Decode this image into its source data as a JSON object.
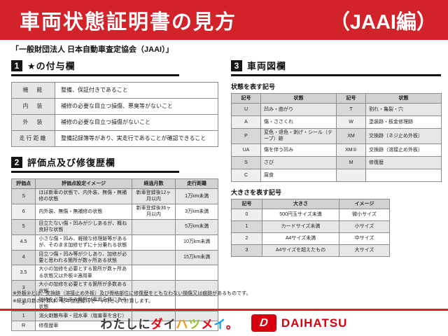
{
  "colors": {
    "header_bg": "#d2232a",
    "section_black": "#151515",
    "brand_red": "#d7000f"
  },
  "header": {
    "title": "車両状態証明書の見方",
    "edition": "（JAAI編）"
  },
  "subtitle": "「一般財団法人 日本自動車査定協会（JAAI）」",
  "section1": {
    "number": "1",
    "title": "★の付与欄",
    "rows": [
      {
        "label": "機　能",
        "desc": "整備、保証付きであること"
      },
      {
        "label": "内　装",
        "desc": "補修の必要な目立つ損傷、悪臭等がないこと"
      },
      {
        "label": "外　装",
        "desc": "補修の必要な目立つ損傷がないこと"
      },
      {
        "label": "走行距離",
        "desc": "整備記録簿等があり、実走行であることが確認できること"
      }
    ]
  },
  "section2": {
    "number": "2",
    "title": "評価点及び修復歴欄",
    "headers": [
      "評価点",
      "評価点設定イメージ",
      "経過月数",
      "走行距離"
    ],
    "rows": [
      [
        "S",
        "ほぼ新車の状態で、内外装、無傷・無補修の状態",
        "新車登録後12ヶ月以内",
        "1万km未満"
      ],
      [
        "6",
        "内外装、無傷・無補修の状態",
        "新車登録後36ヶ月以内",
        "3万km未満"
      ],
      [
        "5",
        "目立たない傷・凹みが少しあるが、概ね良好な状態",
        "",
        "5万km未満"
      ],
      [
        "4.5",
        "小さな傷・凹み、軽微な修理跡等があるが、そのまま加修せずに十分乗れる状態",
        "",
        "10万km未満"
      ],
      [
        "4",
        "目立つ傷・凹み等が少しあり、加修が必要と思われる箇所が数ヶ所ある状態",
        "",
        "15万km未満"
      ],
      [
        "3.5",
        "大小の加修を必要とする箇所が数ヶ所ある状態又は外板②適用車",
        "",
        ""
      ],
      [
        "3",
        "大小の加修を必要とする箇所が多数ある状態",
        "",
        ""
      ],
      [
        "2",
        "加修を必要とする箇所が車両全体にある状態",
        "",
        ""
      ],
      [
        "1",
        "消火剤散布車・冠水車（塩害車を含む）",
        "",
        ""
      ],
      [
        "R",
        "修復歴車",
        "",
        ""
      ]
    ]
  },
  "section3": {
    "number": "3",
    "title": "車両図欄",
    "condition": {
      "label": "状態を表す記号",
      "headers": [
        "記号",
        "状態",
        "記号",
        "状態"
      ],
      "rows": [
        [
          "U",
          "凹み・曲がり",
          "T",
          "割れ・亀裂・穴"
        ],
        [
          "A",
          "傷・ささくれ",
          "W",
          "塗装跡・板金修理跡"
        ],
        [
          "P",
          "変色・退色・剥げ・シール（テープ）跡",
          "XM",
          "交換跡（ネジ止め外板）"
        ],
        [
          "UA",
          "傷を伴う凹み",
          "XM②",
          "交換跡（溶接止め外板）"
        ],
        [
          "S",
          "さび",
          "M",
          "修復歴"
        ],
        [
          "C",
          "腐食",
          "",
          ""
        ]
      ]
    },
    "size": {
      "label": "大きさを表す記号",
      "headers": [
        "記号",
        "大きさ",
        "イメージ"
      ],
      "rows": [
        [
          "0",
          "500円玉サイズ未満",
          "微小サイズ"
        ],
        [
          "1",
          "カードサイズ未満",
          "小サイズ"
        ],
        [
          "2",
          "A4サイズ未満",
          "中サイズ"
        ],
        [
          "3",
          "A4サイズを超えたもの",
          "大サイズ"
        ]
      ]
    }
  },
  "notes": [
    "※外板②とは、交換跡（溶接止め外板）及び骨格部位に修復歴をともなわない損傷又は痕跡があるものです。",
    "※経過月数の計算は、初年度登録月を一ヶ月として計算します。"
  ],
  "footer": {
    "slogan": "わたしにダイハツメイ。",
    "slogan_colors": [
      "#3a3a3a",
      "#3a3a3a",
      "#3a3a3a",
      "#3a3a3a",
      "#e60012",
      "#3a3a3a",
      "#f39800",
      "#8fc31f",
      "#e60012",
      "#00a0e9",
      "#e60012"
    ],
    "brand_mark_letter": "D",
    "brand": "DAIHATSU"
  }
}
